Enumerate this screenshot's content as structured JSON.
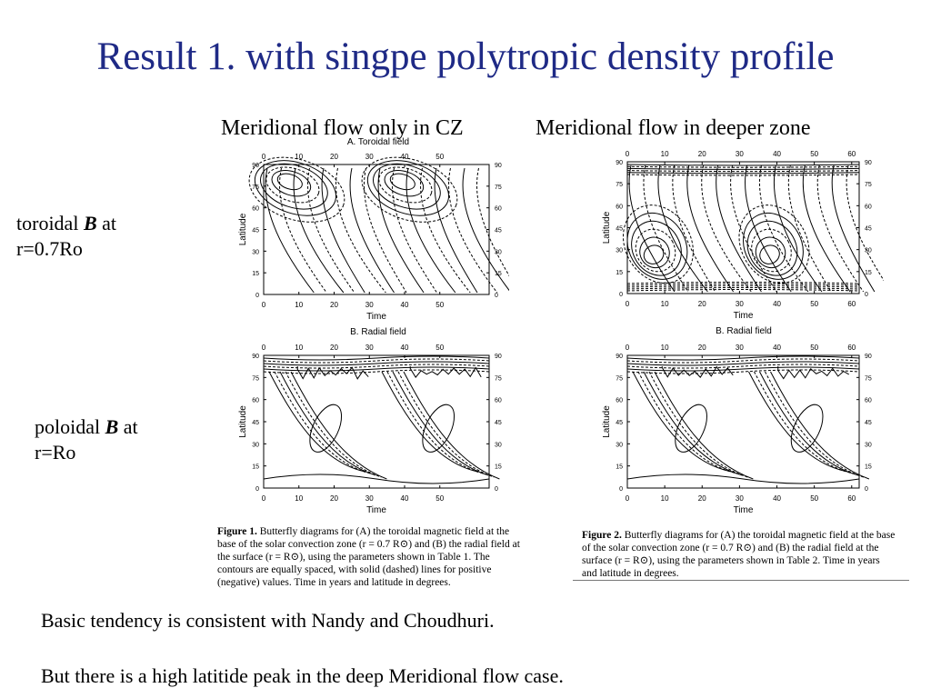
{
  "slide": {
    "title": "Result 1. with singpe polytropic density profile"
  },
  "columns": {
    "left_heading": "Meridional flow only in CZ",
    "right_heading": "Meridional flow in deeper zone"
  },
  "row_labels": {
    "toroidal": {
      "pre": "toroidal ",
      "sym": "B",
      "post": " at",
      "line2": "r=0.7Ro"
    },
    "poloidal": {
      "pre": "poloidal ",
      "sym": "B",
      "post": " at",
      "line2": "r=Ro"
    }
  },
  "plots": {
    "fig1": {
      "panel_a_title": "A. Toroidal field",
      "panel_b_title": "B. Radial field",
      "xlabel": "Time",
      "ylabel": "Latitude",
      "x_ticks": [
        "0",
        "10",
        "20",
        "30",
        "40",
        "50"
      ],
      "y_ticks": [
        "90",
        "75",
        "60",
        "45",
        "30",
        "15",
        "0"
      ]
    },
    "fig2": {
      "panel_b_title": "B. Radial field",
      "xlabel": "Time",
      "ylabel": "Latitude",
      "x_ticks": [
        "0",
        "10",
        "20",
        "30",
        "40",
        "50",
        "60"
      ],
      "y_ticks": [
        "90",
        "75",
        "60",
        "45",
        "30",
        "15",
        "0"
      ]
    }
  },
  "captions": {
    "fig1": {
      "label": "Figure 1.",
      "text": "Butterfly diagrams for (A) the toroidal magnetic field at the base of the solar convection zone (r = 0.7 R⊙) and (B) the radial field at the surface (r = R⊙), using the parameters shown in Table 1. The contours are equally spaced, with solid (dashed) lines for positive (negative) values. Time in years and latitude in degrees."
    },
    "fig2": {
      "label": "Figure 2.",
      "text": "Butterfly diagrams for (A) the toroidal magnetic field at the base of the solar convection zone (r = 0.7 R⊙) and (B) the radial field at the surface (r = R⊙), using the parameters shown in Table 2. Time in years and latitude in degrees."
    }
  },
  "notes": {
    "line1": "Basic tendency is consistent with Nandy and Choudhuri.",
    "line2": "But there is a high latitide peak in the deep Meridional flow case."
  }
}
